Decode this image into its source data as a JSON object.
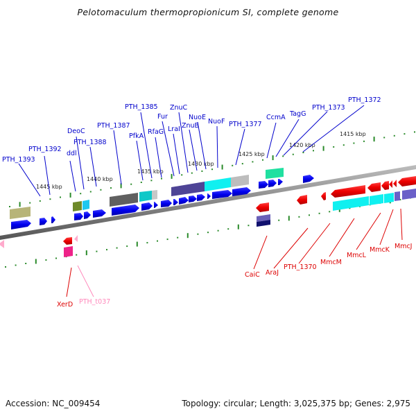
{
  "title": "Pelotomaculum thermopropionicum SI, complete genome",
  "footer": {
    "accession": "Accession: NC_009454",
    "topology": "Topology: circular; Length: 3,025,375 bp; Genes: 2,975"
  },
  "colors": {
    "forward_label": "#0000cc",
    "reverse_label": "#dd0000",
    "trna_label": "#ff88bb",
    "ticks": "#2a8a2a",
    "backbone": "#808080"
  },
  "scale_labels": [
    "1445 kbp",
    "1440 kbp",
    "1435 kbp",
    "1430 kbp",
    "1425 kbp",
    "1420 kbp",
    "1415 kbp"
  ],
  "forward_genes": [
    {
      "name": "PTH_1393"
    },
    {
      "name": "PTH_1392"
    },
    {
      "name": "ddl"
    },
    {
      "name": "DeoC"
    },
    {
      "name": "PTH_1388"
    },
    {
      "name": "PTH_1387"
    },
    {
      "name": "PfkA"
    },
    {
      "name": "PTH_1385"
    },
    {
      "name": "RfaG"
    },
    {
      "name": "Fur"
    },
    {
      "name": "LraI"
    },
    {
      "name": "ZnuC"
    },
    {
      "name": "ZnuB"
    },
    {
      "name": "NuoE"
    },
    {
      "name": "NuoF"
    },
    {
      "name": "PTH_1377"
    },
    {
      "name": "CcmA"
    },
    {
      "name": "TagG"
    },
    {
      "name": "PTH_1373"
    },
    {
      "name": "PTH_1372"
    }
  ],
  "reverse_genes": [
    {
      "name": "XerD"
    },
    {
      "name": "PTH_t037"
    },
    {
      "name": "CaiC"
    },
    {
      "name": "AraJ"
    },
    {
      "name": "PTH_1370"
    },
    {
      "name": "MmcM"
    },
    {
      "name": "MmcL"
    },
    {
      "name": "MmcK"
    },
    {
      "name": "MmcJ"
    }
  ]
}
